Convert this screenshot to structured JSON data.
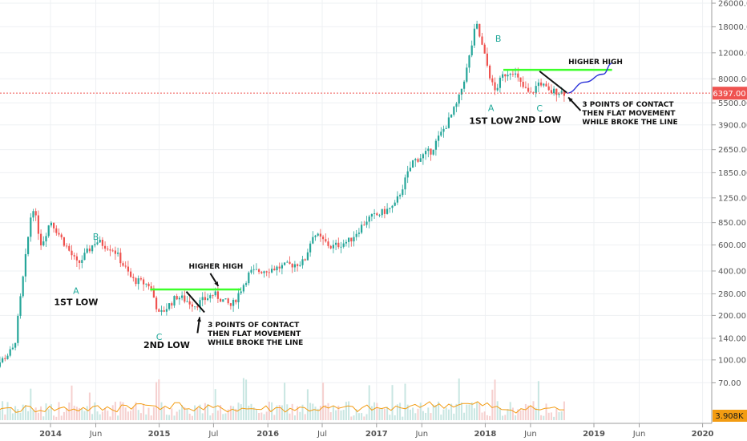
{
  "chart_data": {
    "type": "candlestick",
    "scale": "log",
    "grid": true,
    "y_ticks": [
      "26000.00",
      "18000.00",
      "12000.00",
      "8000.00",
      "5500.00",
      "3900.00",
      "2650.00",
      "1850.00",
      "1250.00",
      "850.00",
      "600.00",
      "400.00",
      "280.00",
      "200.00",
      "140.00",
      "100.00",
      "70.00"
    ],
    "x_ticks": [
      "2014",
      "Jun",
      "2015",
      "Jul",
      "2016",
      "Jul",
      "2017",
      "Jun",
      "2018",
      "Jun",
      "2019",
      "Jun",
      "2020"
    ],
    "last_price": {
      "label": "6397.00",
      "value": 6397
    },
    "volume_label": "3.908K",
    "price_series": [
      {
        "date": "2013-06",
        "value": 80
      },
      {
        "date": "2013-09",
        "value": 120
      },
      {
        "date": "2013-11",
        "value": 1150
      },
      {
        "date": "2013-12",
        "value": 600
      },
      {
        "date": "2014-01",
        "value": 880
      },
      {
        "date": "2014-04",
        "value": 440
      },
      {
        "date": "2014-06",
        "value": 640
      },
      {
        "date": "2014-08",
        "value": 560
      },
      {
        "date": "2014-10",
        "value": 350
      },
      {
        "date": "2014-12",
        "value": 320
      },
      {
        "date": "2015-01",
        "value": 200
      },
      {
        "date": "2015-03",
        "value": 270
      },
      {
        "date": "2015-05",
        "value": 235
      },
      {
        "date": "2015-07",
        "value": 280
      },
      {
        "date": "2015-09",
        "value": 230
      },
      {
        "date": "2015-11",
        "value": 390
      },
      {
        "date": "2016-02",
        "value": 420
      },
      {
        "date": "2016-05",
        "value": 460
      },
      {
        "date": "2016-06",
        "value": 720
      },
      {
        "date": "2016-08",
        "value": 580
      },
      {
        "date": "2016-10",
        "value": 640
      },
      {
        "date": "2016-12",
        "value": 900
      },
      {
        "date": "2017-01",
        "value": 950
      },
      {
        "date": "2017-03",
        "value": 1100
      },
      {
        "date": "2017-05",
        "value": 2200
      },
      {
        "date": "2017-07",
        "value": 2600
      },
      {
        "date": "2017-09",
        "value": 4200
      },
      {
        "date": "2017-10",
        "value": 5600
      },
      {
        "date": "2017-11",
        "value": 9500
      },
      {
        "date": "2017-12",
        "value": 19000
      },
      {
        "date": "2018-01",
        "value": 11000
      },
      {
        "date": "2018-02",
        "value": 6500
      },
      {
        "date": "2018-03",
        "value": 8500
      },
      {
        "date": "2018-04",
        "value": 9200
      },
      {
        "date": "2018-05",
        "value": 7200
      },
      {
        "date": "2018-06",
        "value": 6200
      },
      {
        "date": "2018-07",
        "value": 7700
      },
      {
        "date": "2018-08",
        "value": 6500
      },
      {
        "date": "2018-09",
        "value": 6600
      },
      {
        "date": "2018-10",
        "value": 6397
      }
    ],
    "projection": [
      {
        "date": "2018-10",
        "value": 6397
      },
      {
        "date": "2018-12",
        "value": 7600
      },
      {
        "date": "2019-02",
        "value": 8600
      },
      {
        "date": "2019-03",
        "value": 10200
      }
    ],
    "resistance_lines": [
      {
        "start": "2014-12",
        "end": "2015-10",
        "value": 300
      },
      {
        "start": "2018-03",
        "end": "2019-03",
        "value": 9200
      }
    ],
    "trend_lines": [
      {
        "start": "2015-04",
        "start_value": 290,
        "end": "2015-06",
        "end_value": 210
      },
      {
        "start": "2018-07",
        "start_value": 9000,
        "end": "2018-10",
        "end_value": 6450
      }
    ],
    "annotations": {
      "higher_high": "HIGHER HIGH",
      "first_low": "1ST LOW",
      "second_low": "2ND LOW",
      "contact_1": "3 POINTS OF CONTACT",
      "contact_2": "THEN FLAT MOVEMENT",
      "contact_3": "WHILE BROKE THE LINE",
      "wave_a": "A",
      "wave_b": "B",
      "wave_c": "C"
    },
    "colors": {
      "up": "#26a69a",
      "down": "#ef5350",
      "resistance": "#3dff2a",
      "projection": "#2b32d9",
      "last_price": "#ef5350",
      "wave_label": "#22a99a",
      "volume_ma": "#f39c12"
    }
  }
}
